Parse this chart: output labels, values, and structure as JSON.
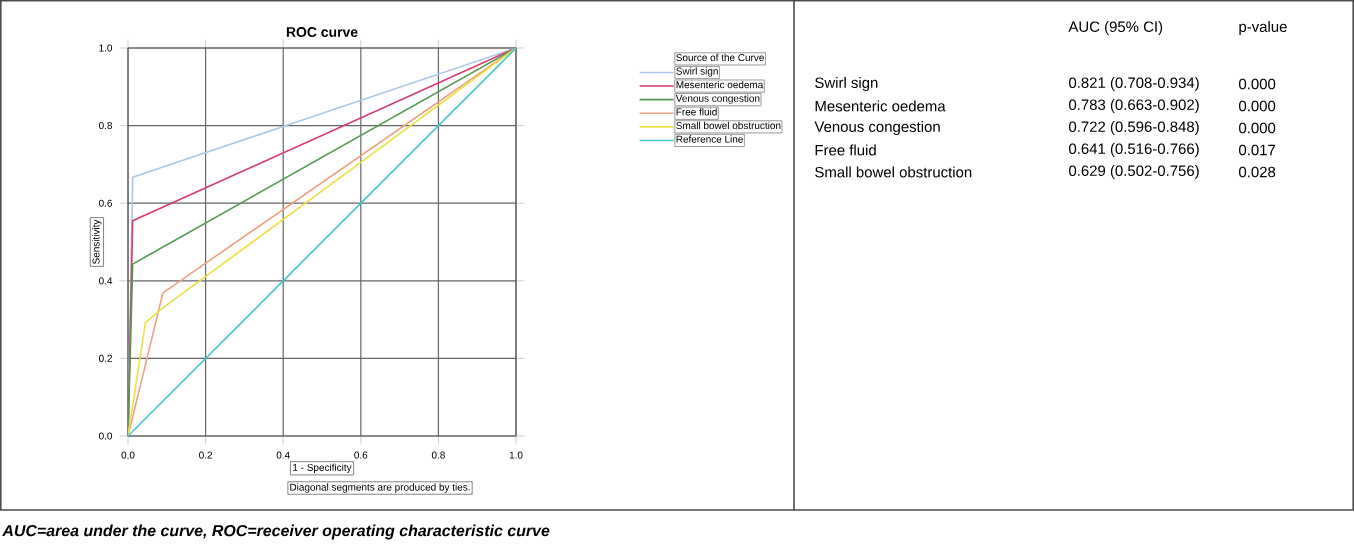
{
  "chart_data": [
    {
      "type": "line",
      "title": "ROC curve",
      "xlabel": "1 - Specificity",
      "ylabel": "Sensitivity",
      "legend_title": "Source of the Curve",
      "legend": "right",
      "grid": true,
      "xlim": [
        0,
        1
      ],
      "ylim": [
        0,
        1
      ],
      "xticks": [
        {
          "value": 0,
          "label": "0.0"
        },
        {
          "value": 0.2,
          "label": "0.2"
        },
        {
          "value": 0.4,
          "label": "0.4"
        },
        {
          "value": 0.6,
          "label": "0.6"
        },
        {
          "value": 0.8,
          "label": "0.8"
        },
        {
          "value": 1,
          "label": "1.0"
        }
      ],
      "yticks": [
        {
          "value": 0,
          "label": "0.0"
        },
        {
          "value": 0.2,
          "label": "0.2"
        },
        {
          "value": 0.4,
          "label": "0.4"
        },
        {
          "value": 0.6,
          "label": "0.6"
        },
        {
          "value": 0.8,
          "label": "0.8"
        },
        {
          "value": 1,
          "label": "1.0"
        }
      ],
      "series": [
        {
          "name": "Swirl sign",
          "color": "#a8c8e8",
          "x": [
            0,
            0.012,
            1
          ],
          "values": [
            0,
            0.667,
            1
          ]
        },
        {
          "name": "Mesenteric oedema",
          "color": "#d63a6e",
          "x": [
            0,
            0.012,
            1
          ],
          "values": [
            0,
            0.555,
            1
          ]
        },
        {
          "name": "Venous congestion",
          "color": "#4f9a4f",
          "x": [
            0,
            0.012,
            1
          ],
          "values": [
            0,
            0.443,
            1
          ]
        },
        {
          "name": "Free fluid",
          "color": "#f0a080",
          "x": [
            0,
            0.09,
            1
          ],
          "values": [
            0,
            0.369,
            1
          ]
        },
        {
          "name": "Small bowel obstruction",
          "color": "#ece040",
          "x": [
            0,
            0.045,
            0.09,
            1
          ],
          "values": [
            0,
            0.292,
            0.33,
            1
          ]
        },
        {
          "name": "Reference Line",
          "color": "#40c8c8",
          "x": [
            0,
            1
          ],
          "values": [
            0,
            1
          ]
        }
      ],
      "annotations": [
        "Diagonal segments are produced by ties.",
        "AUC=area under the curve, ROC=receiver operating characteristic curve"
      ]
    },
    {
      "type": "other",
      "annotations": [
        "AUC (95% CI)",
        "p-value",
        "Swirl sign",
        "0.821 (0.708-0.934)",
        "0.000",
        "Mesenteric oedema",
        "0.783 (0.663-0.902)",
        "0.000",
        "Venous congestion",
        "0.722 (0.596-0.848)",
        "0.000",
        "Free fluid",
        "0.641 (0.516-0.766)",
        "0.017",
        "Small bowel obstruction",
        "0.629 (0.502-0.756)",
        "0.028"
      ]
    }
  ]
}
